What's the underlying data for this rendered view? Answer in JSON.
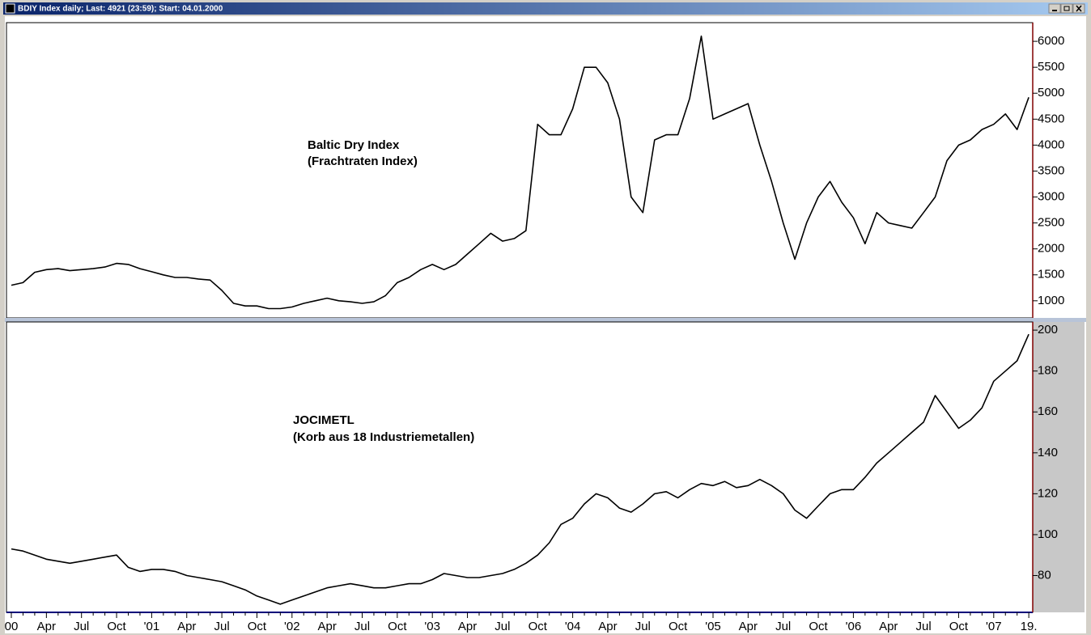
{
  "window": {
    "title": "BDIY Index daily; Last: 4921 (23:59); Start: 04.01.2000"
  },
  "chart_data": [
    {
      "type": "line",
      "annotation": [
        "Baltic Dry Index",
        "(Frachtraten Index)"
      ],
      "color": "#000000",
      "values": [
        1300,
        1350,
        1550,
        1600,
        1620,
        1580,
        1600,
        1620,
        1650,
        1720,
        1700,
        1620,
        1560,
        1500,
        1450,
        1450,
        1420,
        1400,
        1200,
        950,
        900,
        900,
        850,
        850,
        880,
        950,
        1000,
        1050,
        1000,
        980,
        950,
        980,
        1100,
        1350,
        1450,
        1600,
        1700,
        1600,
        1700,
        1900,
        2100,
        2300,
        2150,
        2200,
        2350,
        4400,
        4200,
        4200,
        4700,
        5500,
        5500,
        5200,
        4500,
        3000,
        2700,
        4100,
        4200,
        4200,
        4900,
        6100,
        4500,
        4600,
        4700,
        4800,
        4000,
        3300,
        2500,
        1800,
        2500,
        3000,
        3300,
        2900,
        2600,
        2100,
        2700,
        2500,
        2450,
        2400,
        2700,
        3000,
        3700,
        4000,
        4100,
        4300,
        4400,
        4600,
        4300,
        4921
      ],
      "ylim": [
        670,
        6360
      ],
      "yticks": [
        1000,
        1500,
        2000,
        2500,
        3000,
        3500,
        4000,
        4500,
        5000,
        5500,
        6000
      ]
    },
    {
      "type": "line",
      "annotation": [
        "JOCIMETL",
        "(Korb aus 18 Industriemetallen)"
      ],
      "color": "#000000",
      "categories": [
        "00",
        null,
        null,
        "Apr",
        null,
        null,
        "Jul",
        null,
        null,
        "Oct",
        null,
        null,
        "'01",
        null,
        null,
        "Apr",
        null,
        null,
        "Jul",
        null,
        null,
        "Oct",
        null,
        null,
        "'02",
        null,
        null,
        "Apr",
        null,
        null,
        "Jul",
        null,
        null,
        "Oct",
        null,
        null,
        "'03",
        null,
        null,
        "Apr",
        null,
        null,
        "Jul",
        null,
        null,
        "Oct",
        null,
        null,
        "'04",
        null,
        null,
        "Apr",
        null,
        null,
        "Jul",
        null,
        null,
        "Oct",
        null,
        null,
        "'05",
        null,
        null,
        "Apr",
        null,
        null,
        "Jul",
        null,
        null,
        "Oct",
        null,
        null,
        "'06",
        null,
        null,
        "Apr",
        null,
        null,
        "Jul",
        null,
        null,
        "Oct",
        null,
        null,
        "'07",
        null,
        null,
        "19."
      ],
      "values": [
        93,
        92,
        90,
        88,
        87,
        86,
        87,
        88,
        89,
        90,
        84,
        82,
        83,
        83,
        82,
        80,
        79,
        78,
        77,
        75,
        73,
        70,
        68,
        66,
        68,
        70,
        72,
        74,
        75,
        76,
        75,
        74,
        74,
        75,
        76,
        76,
        78,
        81,
        80,
        79,
        79,
        80,
        81,
        83,
        86,
        90,
        96,
        105,
        108,
        115,
        120,
        118,
        113,
        111,
        115,
        120,
        121,
        118,
        122,
        125,
        124,
        126,
        123,
        124,
        127,
        124,
        120,
        112,
        108,
        114,
        120,
        122,
        122,
        128,
        135,
        140,
        145,
        150,
        155,
        168,
        160,
        152,
        156,
        162,
        175,
        180,
        185,
        198
      ],
      "ylim": [
        62,
        204
      ],
      "yticks": [
        80,
        100,
        120,
        140,
        160,
        180,
        200
      ]
    }
  ]
}
